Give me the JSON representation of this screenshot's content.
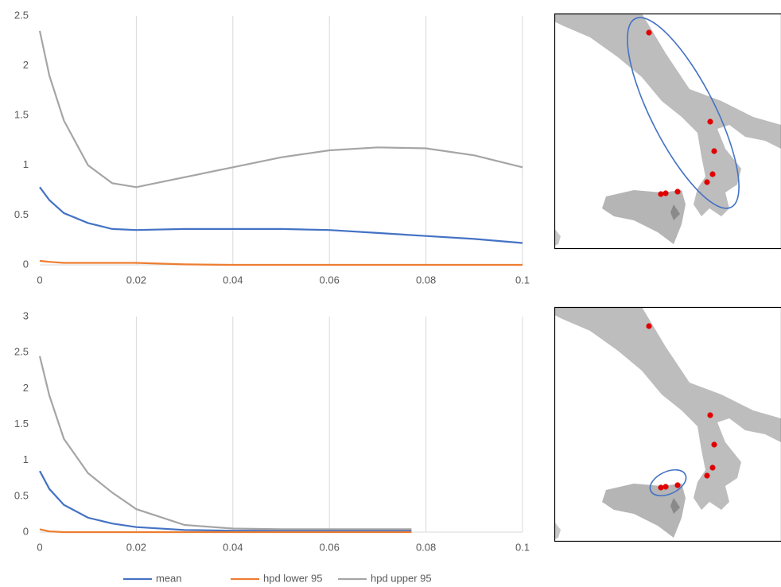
{
  "chart_data": [
    {
      "type": "line",
      "x": [
        0,
        0.002,
        0.005,
        0.01,
        0.015,
        0.02,
        0.03,
        0.04,
        0.05,
        0.06,
        0.07,
        0.08,
        0.09,
        0.1
      ],
      "series": [
        {
          "color": "#4472c4",
          "values": [
            0.78,
            0.65,
            0.52,
            0.42,
            0.36,
            0.35,
            0.36,
            0.36,
            0.36,
            0.35,
            0.32,
            0.29,
            0.26,
            0.22
          ]
        },
        {
          "color": "#ed7d31",
          "values": [
            0.04,
            0.03,
            0.02,
            0.02,
            0.02,
            0.02,
            0.005,
            0,
            0,
            0,
            0,
            0,
            0,
            0
          ]
        },
        {
          "color": "#a5a5a5",
          "values": [
            2.35,
            1.9,
            1.45,
            1.0,
            0.82,
            0.78,
            0.88,
            0.98,
            1.08,
            1.15,
            1.18,
            1.17,
            1.1,
            0.98
          ]
        }
      ],
      "xlim": [
        0,
        0.1
      ],
      "xticks": [
        0,
        0.02,
        0.04,
        0.06,
        0.08,
        0.1
      ],
      "ylim": [
        0,
        2.5
      ],
      "yticks": [
        0,
        0.5,
        1,
        1.5,
        2,
        2.5
      ],
      "grid": true
    },
    {
      "type": "line",
      "x": [
        0,
        0.002,
        0.005,
        0.01,
        0.015,
        0.02,
        0.03,
        0.04,
        0.05,
        0.06,
        0.07,
        0.077
      ],
      "series": [
        {
          "name": "mean",
          "color": "#4472c4",
          "values": [
            0.85,
            0.6,
            0.38,
            0.2,
            0.12,
            0.07,
            0.03,
            0.02,
            0.02,
            0.02,
            0.02,
            0.02
          ]
        },
        {
          "name": "hpd lower 95",
          "color": "#ed7d31",
          "values": [
            0.04,
            0.01,
            0,
            0,
            0,
            0,
            0,
            0,
            0,
            0,
            0,
            0
          ]
        },
        {
          "name": "hpd upper 95",
          "color": "#a5a5a5",
          "values": [
            2.45,
            1.9,
            1.3,
            0.82,
            0.55,
            0.32,
            0.1,
            0.05,
            0.04,
            0.04,
            0.04,
            0.04
          ]
        }
      ],
      "xlim": [
        0,
        0.1
      ],
      "xticks": [
        0,
        0.02,
        0.04,
        0.06,
        0.08,
        0.1
      ],
      "ylim": [
        0,
        3
      ],
      "yticks": [
        0,
        0.5,
        1,
        1.5,
        2,
        2.5,
        3
      ],
      "grid": true
    }
  ]
}
